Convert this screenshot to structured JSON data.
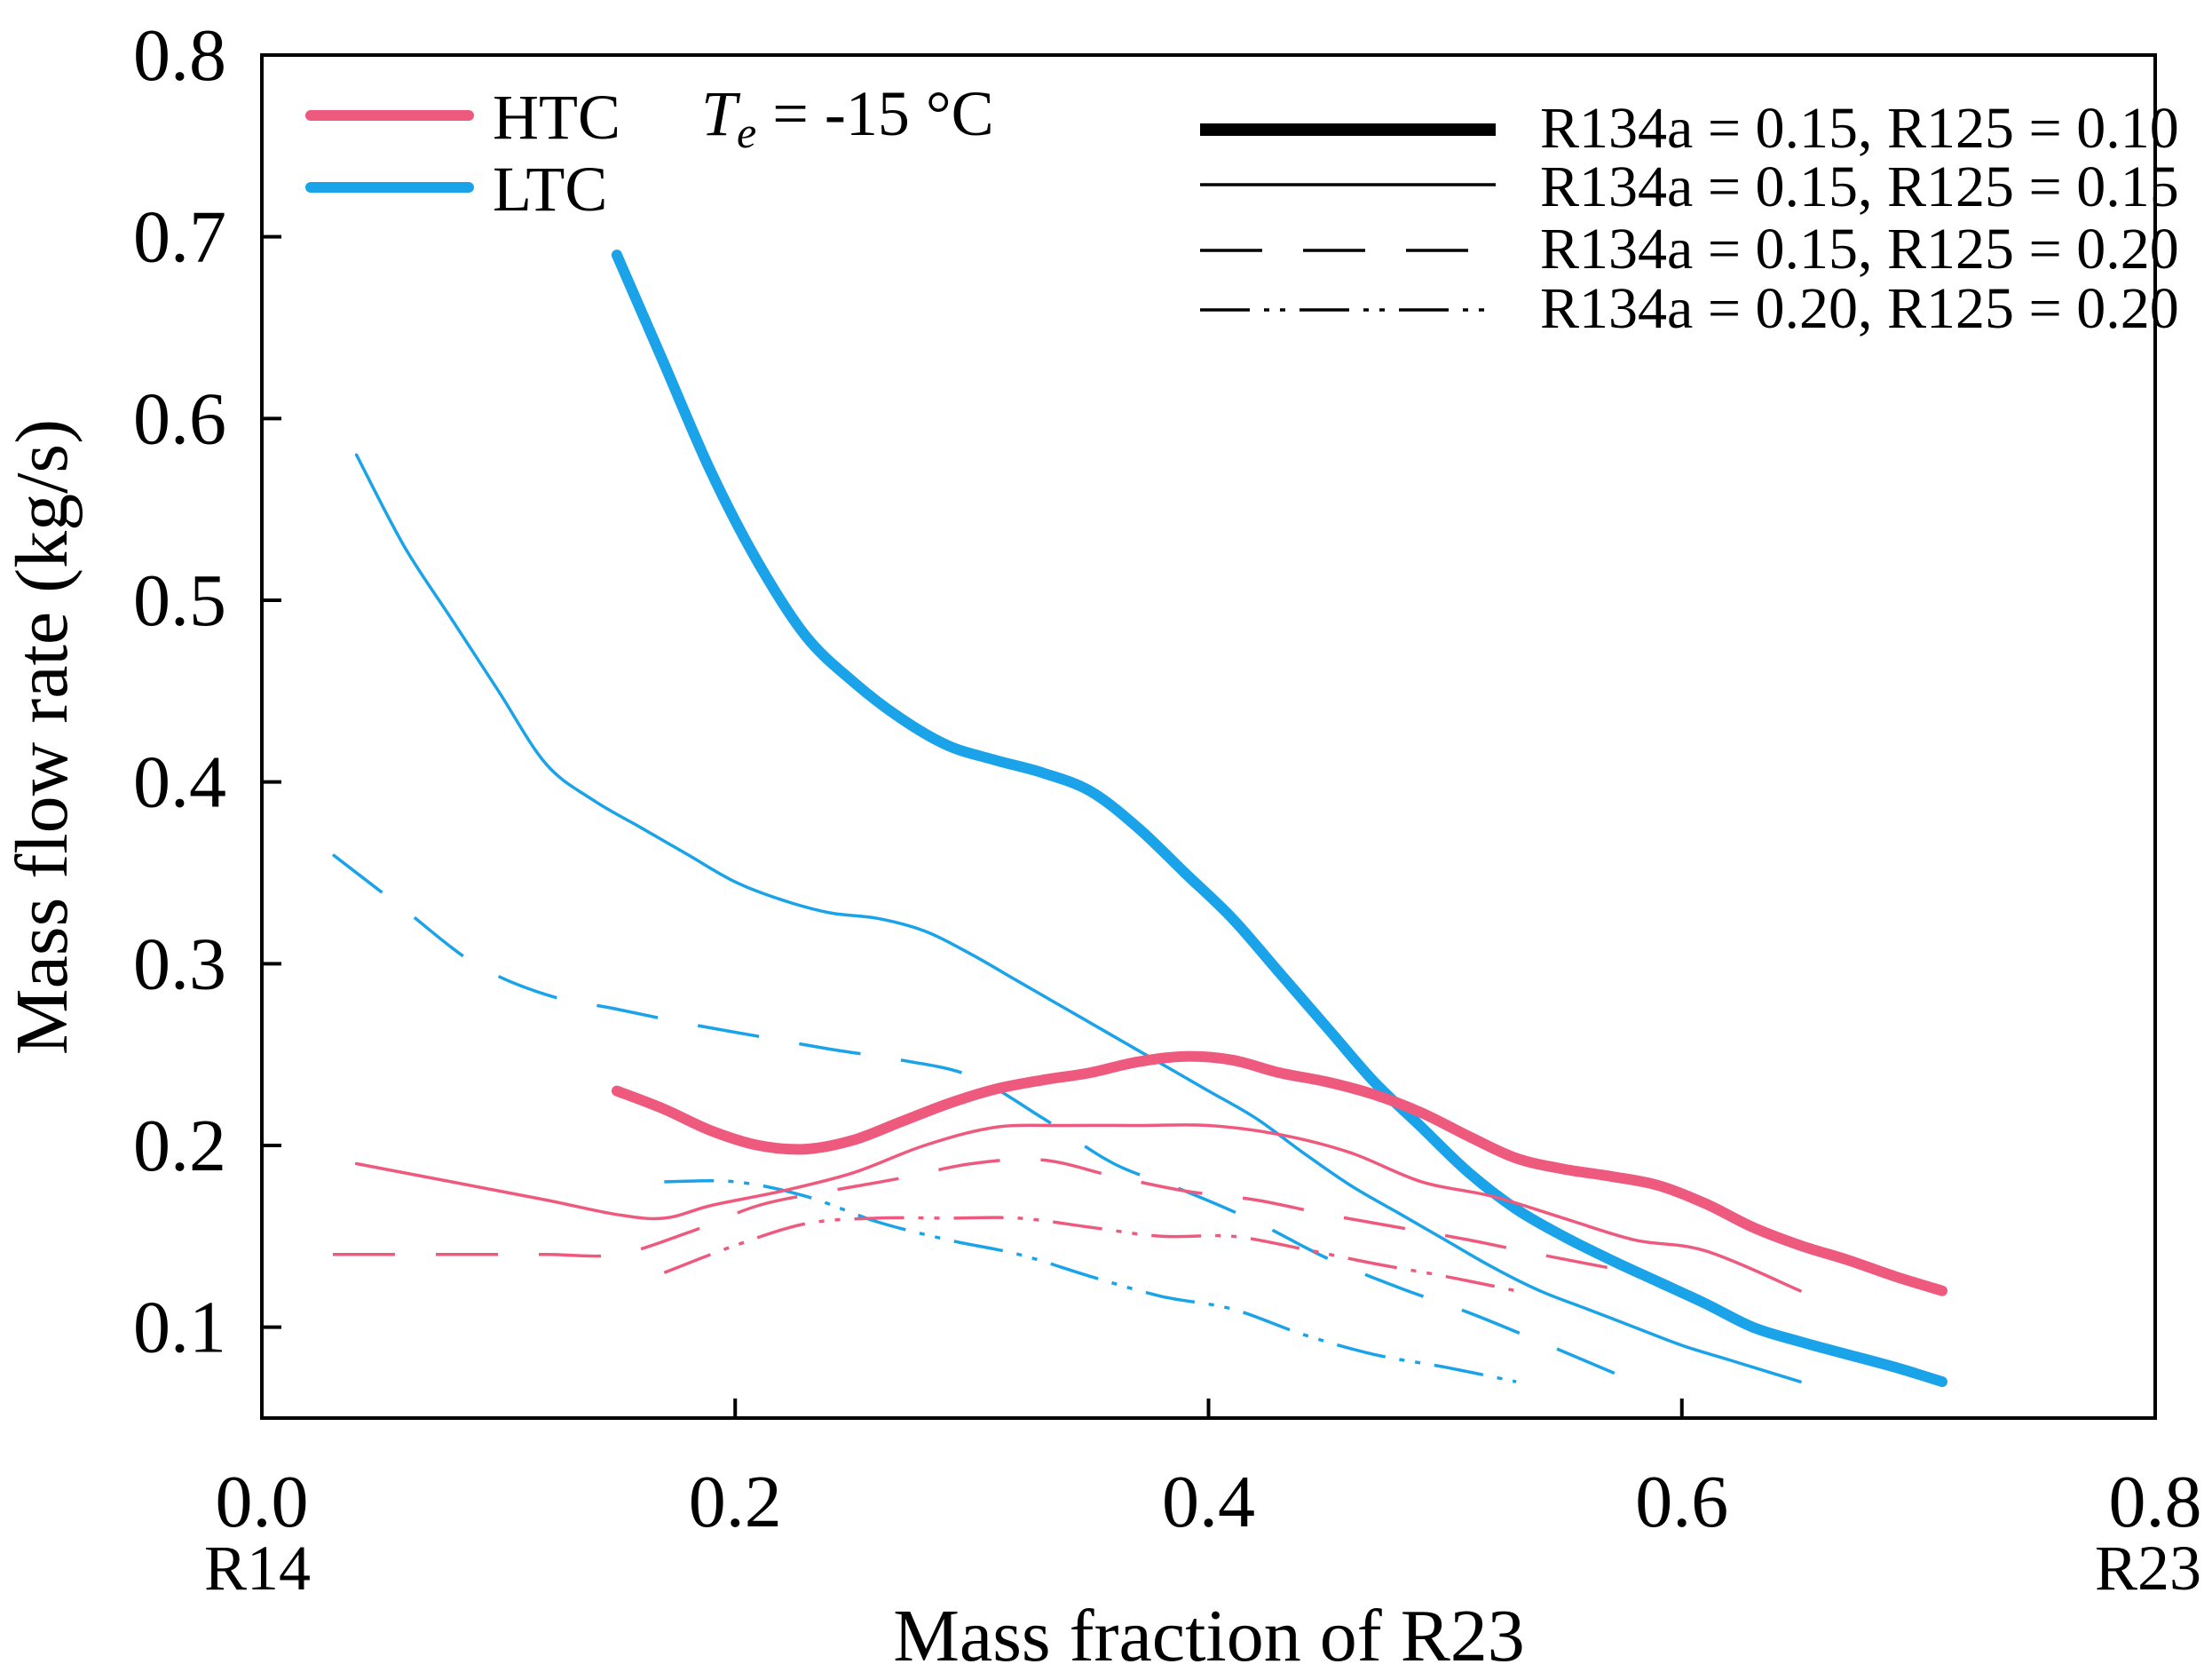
{
  "chart_data": {
    "type": "line",
    "xlabel": "Mass fraction of R23",
    "ylabel": "Mass flow rate (kg/s)",
    "xlim": [
      0.0,
      0.8
    ],
    "ylim": [
      0.05,
      0.8
    ],
    "x_ticks": [
      0.0,
      0.2,
      0.4,
      0.6,
      0.8
    ],
    "x_tick_labels": [
      "0.0",
      "0.2",
      "0.4",
      "0.6",
      "0.8"
    ],
    "y_ticks": [
      0.1,
      0.2,
      0.3,
      0.4,
      0.5,
      0.6,
      0.7,
      0.8
    ],
    "y_tick_labels": [
      "0.1",
      "0.2",
      "0.3",
      "0.4",
      "0.5",
      "0.6",
      "0.7",
      "0.8"
    ],
    "x_end_labels": {
      "left": "R14",
      "right": "R23"
    },
    "grid": false,
    "condition_prefix": "T",
    "condition_subscript": "e",
    "condition_value": " = -15 °C",
    "colors": {
      "HTC": "#ee5a7e",
      "LTC": "#1aa3e8"
    },
    "legend_cycles": [
      {
        "name": "HTC",
        "color": "#ee5a7e"
      },
      {
        "name": "LTC",
        "color": "#1aa3e8"
      }
    ],
    "legend_compositions": [
      {
        "label": "R134a = 0.15, R125 = 0.10",
        "style": "thick"
      },
      {
        "label": "R134a = 0.15, R125 = 0.15",
        "style": "thin"
      },
      {
        "label": "R134a = 0.15, R125 = 0.20",
        "style": "dashed"
      },
      {
        "label": "R134a = 0.20, R125 = 0.20",
        "style": "dashdotdot"
      }
    ],
    "series": [
      {
        "name": "LTC, R134a = 0.15, R125 = 0.10",
        "cycle": "LTC",
        "style": "thick",
        "x": [
          0.15,
          0.17,
          0.19,
          0.21,
          0.23,
          0.25,
          0.27,
          0.29,
          0.31,
          0.33,
          0.35,
          0.37,
          0.39,
          0.41,
          0.43,
          0.45,
          0.47,
          0.49,
          0.51,
          0.53,
          0.55,
          0.57,
          0.59,
          0.61,
          0.63,
          0.65,
          0.67,
          0.69,
          0.71
        ],
        "values": [
          0.69,
          0.63,
          0.57,
          0.52,
          0.48,
          0.455,
          0.435,
          0.42,
          0.412,
          0.405,
          0.395,
          0.375,
          0.35,
          0.325,
          0.295,
          0.265,
          0.235,
          0.21,
          0.185,
          0.165,
          0.15,
          0.137,
          0.125,
          0.113,
          0.1,
          0.092,
          0.085,
          0.078,
          0.07
        ]
      },
      {
        "name": "LTC, R134a = 0.15, R125 = 0.15",
        "cycle": "LTC",
        "style": "thin",
        "x": [
          0.04,
          0.06,
          0.08,
          0.1,
          0.12,
          0.14,
          0.16,
          0.18,
          0.2,
          0.22,
          0.24,
          0.26,
          0.28,
          0.3,
          0.32,
          0.34,
          0.36,
          0.38,
          0.4,
          0.42,
          0.44,
          0.46,
          0.48,
          0.5,
          0.52,
          0.54,
          0.56,
          0.58,
          0.6,
          0.62,
          0.65
        ],
        "values": [
          0.58,
          0.53,
          0.49,
          0.45,
          0.41,
          0.39,
          0.375,
          0.36,
          0.345,
          0.335,
          0.328,
          0.325,
          0.318,
          0.305,
          0.29,
          0.275,
          0.26,
          0.245,
          0.23,
          0.215,
          0.196,
          0.178,
          0.163,
          0.148,
          0.133,
          0.12,
          0.11,
          0.1,
          0.09,
          0.082,
          0.07
        ]
      },
      {
        "name": "LTC, R134a = 0.15, R125 = 0.20",
        "cycle": "LTC",
        "style": "dashed",
        "x": [
          0.03,
          0.06,
          0.09,
          0.12,
          0.15,
          0.18,
          0.21,
          0.24,
          0.27,
          0.3,
          0.33,
          0.36,
          0.39,
          0.42,
          0.45,
          0.48,
          0.51,
          0.54,
          0.58
        ],
        "values": [
          0.36,
          0.33,
          0.3,
          0.283,
          0.275,
          0.267,
          0.26,
          0.253,
          0.247,
          0.238,
          0.215,
          0.19,
          0.175,
          0.158,
          0.138,
          0.122,
          0.108,
          0.092,
          0.07
        ]
      },
      {
        "name": "LTC, R134a = 0.20, R125 = 0.20",
        "cycle": "LTC",
        "style": "dashdotdot",
        "x": [
          0.17,
          0.2,
          0.23,
          0.26,
          0.29,
          0.32,
          0.35,
          0.38,
          0.41,
          0.44,
          0.47,
          0.5,
          0.53
        ],
        "values": [
          0.18,
          0.18,
          0.172,
          0.158,
          0.148,
          0.14,
          0.128,
          0.117,
          0.11,
          0.096,
          0.085,
          0.078,
          0.07
        ]
      },
      {
        "name": "HTC, R134a = 0.15, R125 = 0.10",
        "cycle": "HTC",
        "style": "thick",
        "x": [
          0.15,
          0.17,
          0.19,
          0.21,
          0.23,
          0.25,
          0.27,
          0.29,
          0.31,
          0.33,
          0.35,
          0.37,
          0.39,
          0.41,
          0.43,
          0.45,
          0.47,
          0.49,
          0.51,
          0.53,
          0.55,
          0.57,
          0.59,
          0.61,
          0.63,
          0.65,
          0.67,
          0.69,
          0.71
        ],
        "values": [
          0.23,
          0.22,
          0.208,
          0.2,
          0.198,
          0.203,
          0.213,
          0.223,
          0.231,
          0.236,
          0.24,
          0.246,
          0.249,
          0.247,
          0.24,
          0.235,
          0.228,
          0.218,
          0.205,
          0.193,
          0.187,
          0.183,
          0.178,
          0.168,
          0.155,
          0.145,
          0.137,
          0.128,
          0.12
        ]
      },
      {
        "name": "HTC, R134a = 0.15, R125 = 0.15",
        "cycle": "HTC",
        "style": "thin",
        "x": [
          0.04,
          0.08,
          0.12,
          0.15,
          0.17,
          0.19,
          0.22,
          0.25,
          0.28,
          0.31,
          0.34,
          0.37,
          0.4,
          0.43,
          0.46,
          0.49,
          0.52,
          0.55,
          0.58,
          0.61,
          0.65
        ],
        "values": [
          0.19,
          0.18,
          0.17,
          0.162,
          0.16,
          0.167,
          0.175,
          0.185,
          0.2,
          0.21,
          0.211,
          0.211,
          0.211,
          0.206,
          0.196,
          0.18,
          0.172,
          0.16,
          0.148,
          0.142,
          0.12
        ]
      },
      {
        "name": "HTC, R134a = 0.15, R125 = 0.20",
        "cycle": "HTC",
        "style": "dashed",
        "x": [
          0.03,
          0.08,
          0.12,
          0.15,
          0.18,
          0.21,
          0.24,
          0.27,
          0.3,
          0.33,
          0.36,
          0.39,
          0.42,
          0.45,
          0.48,
          0.51,
          0.54,
          0.58
        ],
        "values": [
          0.14,
          0.14,
          0.14,
          0.14,
          0.152,
          0.167,
          0.175,
          0.182,
          0.19,
          0.192,
          0.183,
          0.175,
          0.17,
          0.162,
          0.155,
          0.148,
          0.14,
          0.13
        ]
      },
      {
        "name": "HTC, R134a = 0.20, R125 = 0.20",
        "cycle": "HTC",
        "style": "dashdotdot",
        "x": [
          0.17,
          0.2,
          0.23,
          0.26,
          0.29,
          0.32,
          0.35,
          0.38,
          0.41,
          0.44,
          0.47,
          0.5,
          0.53
        ],
        "values": [
          0.13,
          0.145,
          0.157,
          0.16,
          0.16,
          0.16,
          0.155,
          0.15,
          0.15,
          0.143,
          0.135,
          0.128,
          0.12
        ]
      }
    ]
  }
}
